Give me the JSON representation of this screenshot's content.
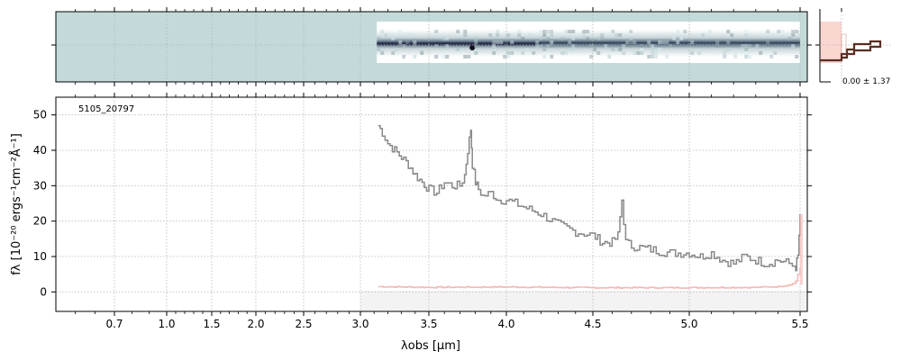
{
  "chart_data": [
    {
      "type": "heatmap",
      "panel": "2d-spectrum",
      "description_free": true,
      "x_tick_labels_hidden": true,
      "y_ticks": [
        0
      ],
      "background_color": "#c4dada",
      "trace_color": "#2a2a4a",
      "x_range": [
        0.4,
        5.53
      ],
      "data_extent_um": [
        3.12,
        5.5
      ],
      "grid": true
    },
    {
      "type": "line",
      "panel": "profile",
      "annotation": "0.00 ± 1.37",
      "profile_color": "#5a2e22",
      "band_color": "#f7c8c0",
      "grid": true
    },
    {
      "type": "line",
      "panel": "1d-spectrum",
      "title": "",
      "label": "5105_20797",
      "xlabel": "λobs [μm]",
      "ylabel": "fλ [10⁻²⁰ ergs⁻¹cm⁻²Å⁻¹]",
      "xlim": [
        0.4,
        5.53
      ],
      "ylim": [
        -5.5,
        55
      ],
      "x_ticks": [
        0.7,
        1.0,
        1.5,
        2.0,
        2.5,
        3.0,
        3.5,
        4.0,
        4.5,
        5.0,
        5.5
      ],
      "x_tick_labels": [
        "0.7",
        "1.0",
        "1.5",
        "2.0",
        "2.5",
        "3.0",
        "3.5",
        "4.0",
        "4.5",
        "5.0",
        "5.5"
      ],
      "y_ticks": [
        0,
        10,
        20,
        30,
        40,
        50
      ],
      "y_tick_labels": [
        "0",
        "10",
        "20",
        "30",
        "40",
        "50"
      ],
      "grid": true,
      "axis_scale": "prism-dispersion (non-linear)",
      "series": [
        {
          "name": "",
          "color": "#888888",
          "x": [
            3.13,
            3.16,
            3.2,
            3.25,
            3.3,
            3.35,
            3.4,
            3.45,
            3.5,
            3.55,
            3.6,
            3.65,
            3.7,
            3.73,
            3.75,
            3.77,
            3.78,
            3.8,
            3.82,
            3.85,
            3.9,
            3.95,
            4.0,
            4.05,
            4.1,
            4.15,
            4.2,
            4.3,
            4.4,
            4.5,
            4.55,
            4.6,
            4.63,
            4.65,
            4.67,
            4.7,
            4.8,
            4.9,
            5.0,
            5.05,
            5.1,
            5.15,
            5.2,
            5.25,
            5.3,
            5.35,
            5.4,
            5.45,
            5.48,
            5.49,
            5.5
          ],
          "y": [
            47,
            45,
            42,
            40,
            38,
            36,
            33,
            31,
            29,
            28,
            31,
            30,
            30,
            33,
            40,
            46,
            36,
            31,
            29,
            27,
            28,
            26,
            26,
            25,
            24,
            23,
            22,
            19,
            17,
            16,
            14,
            14,
            16,
            26,
            14,
            13,
            12,
            11,
            11,
            10,
            11,
            9,
            8,
            10,
            9,
            8,
            9,
            8,
            7,
            10,
            22
          ]
        },
        {
          "name": "",
          "color": "#f5b8b8",
          "x": [
            3.13,
            3.5,
            4.0,
            4.5,
            5.0,
            5.3,
            5.4,
            5.45,
            5.48,
            5.5
          ],
          "y": [
            1.5,
            1.3,
            1.4,
            1.2,
            1.2,
            1.3,
            1.5,
            2.0,
            3.0,
            7.0
          ]
        }
      ]
    }
  ]
}
